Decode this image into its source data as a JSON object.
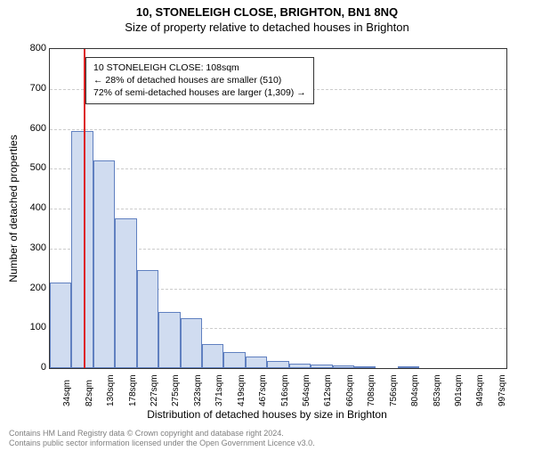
{
  "title": {
    "line1": "10, STONELEIGH CLOSE, BRIGHTON, BN1 8NQ",
    "line2": "Size of property relative to detached houses in Brighton"
  },
  "chart": {
    "type": "histogram",
    "ylabel": "Number of detached properties",
    "xlabel": "Distribution of detached houses by size in Brighton",
    "ylim": [
      0,
      800
    ],
    "ytick_step": 100,
    "yticks": [
      0,
      100,
      200,
      300,
      400,
      500,
      600,
      700,
      800
    ],
    "xticks": [
      "34sqm",
      "82sqm",
      "130sqm",
      "178sqm",
      "227sqm",
      "275sqm",
      "323sqm",
      "371sqm",
      "419sqm",
      "467sqm",
      "516sqm",
      "564sqm",
      "612sqm",
      "660sqm",
      "708sqm",
      "756sqm",
      "804sqm",
      "853sqm",
      "901sqm",
      "949sqm",
      "997sqm"
    ],
    "bar_values": [
      215,
      595,
      520,
      375,
      245,
      140,
      125,
      60,
      40,
      30,
      18,
      12,
      10,
      6,
      3,
      0,
      3,
      0,
      0,
      0,
      0
    ],
    "bar_fill": "#d0dcf0",
    "bar_border": "#6080c0",
    "background_color": "#ffffff",
    "grid_color": "#cccccc",
    "axis_color": "#333333",
    "marker_value": 108,
    "marker_color": "#dd2222",
    "x_min": 34,
    "x_max": 997
  },
  "legend": {
    "line1": "10 STONELEIGH CLOSE: 108sqm",
    "line2": "← 28% of detached houses are smaller (510)",
    "line3": "72% of semi-detached houses are larger (1,309) →"
  },
  "footer": {
    "line1": "Contains HM Land Registry data © Crown copyright and database right 2024.",
    "line2": "Contains public sector information licensed under the Open Government Licence v3.0."
  }
}
